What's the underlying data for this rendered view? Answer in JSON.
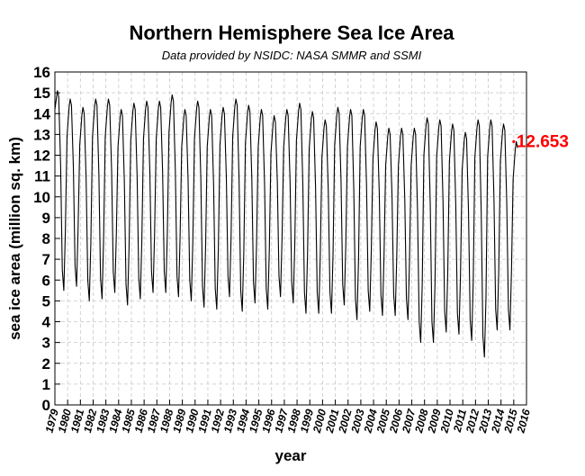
{
  "chart_data": {
    "type": "line",
    "title": "Northern Hemisphere Sea Ice Area",
    "subtitle": "Data provided by NSIDC: NASA SMMR and SSMI",
    "xlabel": "year",
    "ylabel": "sea ice area (million sq. km)",
    "xlim": [
      1979,
      2016
    ],
    "ylim": [
      0,
      16
    ],
    "grid": true,
    "x_ticks": [
      "1979",
      "1980",
      "1981",
      "1982",
      "1983",
      "1984",
      "1985",
      "1986",
      "1987",
      "1988",
      "1989",
      "1990",
      "1991",
      "1992",
      "1993",
      "1994",
      "1995",
      "1996",
      "1997",
      "1998",
      "1999",
      "2000",
      "2001",
      "2002",
      "2003",
      "2004",
      "2005",
      "2006",
      "2007",
      "2008",
      "2009",
      "2010",
      "2011",
      "2012",
      "2013",
      "2014",
      "2015",
      "2016"
    ],
    "y_ticks": [
      "0",
      "1",
      "2",
      "3",
      "4",
      "5",
      "6",
      "7",
      "8",
      "9",
      "10",
      "11",
      "12",
      "13",
      "14",
      "15",
      "16"
    ],
    "annotation": {
      "text": "12.653",
      "x": 2015.0,
      "y": 12.653,
      "color": "#ff0000"
    },
    "series": [
      {
        "line_color": "#000000",
        "yearly": [
          {
            "year": 1979,
            "max": 15.1,
            "min": 5.5
          },
          {
            "year": 1980,
            "max": 14.7,
            "min": 5.7
          },
          {
            "year": 1981,
            "max": 14.3,
            "min": 5.0
          },
          {
            "year": 1982,
            "max": 14.7,
            "min": 5.1
          },
          {
            "year": 1983,
            "max": 14.7,
            "min": 5.4
          },
          {
            "year": 1984,
            "max": 14.2,
            "min": 4.8
          },
          {
            "year": 1985,
            "max": 14.5,
            "min": 5.1
          },
          {
            "year": 1986,
            "max": 14.6,
            "min": 5.4
          },
          {
            "year": 1987,
            "max": 14.6,
            "min": 5.4
          },
          {
            "year": 1988,
            "max": 14.9,
            "min": 5.2
          },
          {
            "year": 1989,
            "max": 14.2,
            "min": 5.0
          },
          {
            "year": 1990,
            "max": 14.6,
            "min": 4.7
          },
          {
            "year": 1991,
            "max": 14.2,
            "min": 4.6
          },
          {
            "year": 1992,
            "max": 14.3,
            "min": 5.2
          },
          {
            "year": 1993,
            "max": 14.7,
            "min": 4.5
          },
          {
            "year": 1994,
            "max": 14.4,
            "min": 4.9
          },
          {
            "year": 1995,
            "max": 14.2,
            "min": 4.6
          },
          {
            "year": 1996,
            "max": 13.9,
            "min": 5.2
          },
          {
            "year": 1997,
            "max": 14.2,
            "min": 4.9
          },
          {
            "year": 1998,
            "max": 14.5,
            "min": 4.4
          },
          {
            "year": 1999,
            "max": 14.1,
            "min": 4.4
          },
          {
            "year": 2000,
            "max": 13.7,
            "min": 4.4
          },
          {
            "year": 2001,
            "max": 14.3,
            "min": 4.8
          },
          {
            "year": 2002,
            "max": 14.2,
            "min": 4.1
          },
          {
            "year": 2003,
            "max": 14.2,
            "min": 4.5
          },
          {
            "year": 2004,
            "max": 13.6,
            "min": 4.3
          },
          {
            "year": 2005,
            "max": 13.3,
            "min": 4.3
          },
          {
            "year": 2006,
            "max": 13.3,
            "min": 4.1
          },
          {
            "year": 2007,
            "max": 13.3,
            "min": 3.0
          },
          {
            "year": 2008,
            "max": 13.8,
            "min": 3.0
          },
          {
            "year": 2009,
            "max": 13.7,
            "min": 3.5
          },
          {
            "year": 2010,
            "max": 13.5,
            "min": 3.4
          },
          {
            "year": 2011,
            "max": 13.1,
            "min": 3.1
          },
          {
            "year": 2012,
            "max": 13.7,
            "min": 2.3
          },
          {
            "year": 2013,
            "max": 13.7,
            "min": 3.6
          },
          {
            "year": 2014,
            "max": 13.5,
            "min": 3.6
          },
          {
            "year": 2015,
            "max": 12.653,
            "min": null
          }
        ]
      }
    ]
  }
}
